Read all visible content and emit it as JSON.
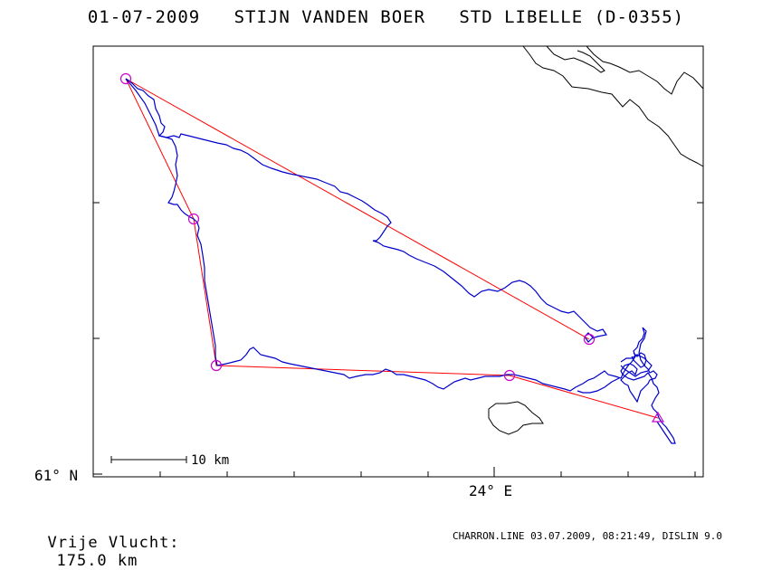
{
  "header": {
    "title": "01-07-2009   STIJN VANDEN BOER   STD LIBELLE (D-0355)"
  },
  "axes": {
    "lat_label": "61° N",
    "lon_label": "24° E"
  },
  "scale_bar": {
    "label": "10 km"
  },
  "footer": {
    "distance_label": "Vrije Vlucht:",
    "distance_value": "175.0 km",
    "program_info": "CHARRON.LINE 03.07.2009, 08:21:49, DISLIN 9.0"
  },
  "colors": {
    "task_line": "#ff0000",
    "turnpoint_marker": "#cc00cc",
    "flight_track": "#0000cc",
    "coastline": "#000000"
  },
  "task": {
    "turnpoints": 6,
    "marker_shapes": [
      "circle",
      "circle",
      "circle",
      "circle",
      "circle",
      "triangle"
    ]
  }
}
